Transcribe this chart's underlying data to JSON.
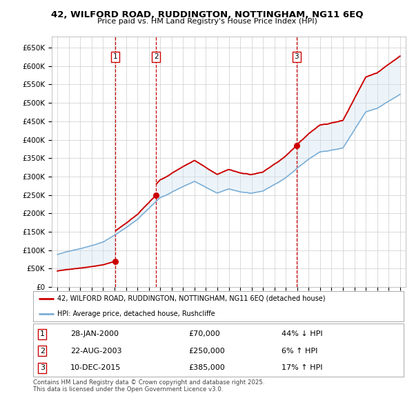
{
  "title": "42, WILFORD ROAD, RUDDINGTON, NOTTINGHAM, NG11 6EQ",
  "subtitle": "Price paid vs. HM Land Registry's House Price Index (HPI)",
  "ylim": [
    0,
    680000
  ],
  "xlim_start": 1994.5,
  "xlim_end": 2025.5,
  "yticks": [
    0,
    50000,
    100000,
    150000,
    200000,
    250000,
    300000,
    350000,
    400000,
    450000,
    500000,
    550000,
    600000,
    650000
  ],
  "ytick_labels": [
    "£0",
    "£50K",
    "£100K",
    "£150K",
    "£200K",
    "£250K",
    "£300K",
    "£350K",
    "£400K",
    "£450K",
    "£500K",
    "£550K",
    "£600K",
    "£650K"
  ],
  "sale_dates_dec": [
    2000.074,
    2003.638,
    2015.941
  ],
  "sale_prices": [
    70000,
    250000,
    385000
  ],
  "sale_labels": [
    "1",
    "2",
    "3"
  ],
  "sale_date_strings": [
    "28-JAN-2000",
    "22-AUG-2003",
    "10-DEC-2015"
  ],
  "sale_price_strings": [
    "£70,000",
    "£250,000",
    "£385,000"
  ],
  "sale_pct_strings": [
    "44% ↓ HPI",
    "6% ↑ HPI",
    "17% ↑ HPI"
  ],
  "legend_red": "42, WILFORD ROAD, RUDDINGTON, NOTTINGHAM, NG11 6EQ (detached house)",
  "legend_blue": "HPI: Average price, detached house, Rushcliffe",
  "copyright_text": "Contains HM Land Registry data © Crown copyright and database right 2025.\nThis data is licensed under the Open Government Licence v3.0.",
  "bg_color": "#ffffff",
  "grid_color": "#cccccc",
  "red_color": "#cc0000",
  "blue_color": "#7aaed6",
  "shade_color": "#cce0f0",
  "vline_color": "#cc0000",
  "hpi_years": [
    1995,
    1996,
    1997,
    1998,
    1999,
    2000,
    2001,
    2002,
    2003,
    2004,
    2005,
    2006,
    2007,
    2008,
    2009,
    2010,
    2011,
    2012,
    2013,
    2014,
    2015,
    2016,
    2017,
    2018,
    2019,
    2020,
    2021,
    2022,
    2023,
    2024,
    2025
  ],
  "hpi_vals": [
    88000,
    95000,
    102000,
    112000,
    123000,
    140000,
    158000,
    180000,
    210000,
    240000,
    255000,
    270000,
    285000,
    270000,
    255000,
    265000,
    258000,
    255000,
    262000,
    280000,
    300000,
    325000,
    350000,
    370000,
    375000,
    380000,
    430000,
    480000,
    490000,
    510000,
    530000
  ]
}
